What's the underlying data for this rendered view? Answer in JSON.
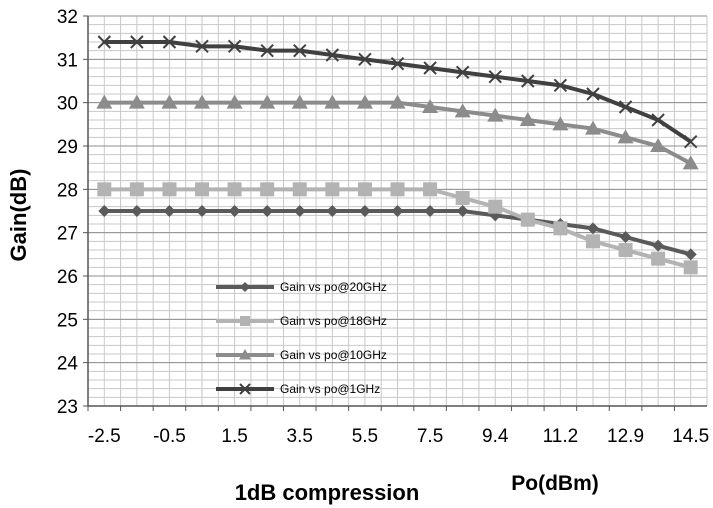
{
  "chart_data": {
    "type": "line",
    "title": "",
    "xlabel": "Po(dBm)",
    "ylabel": "Gain(dB)",
    "bottom_label": "1dB compression",
    "categories": [
      "-2.5",
      "-1.5",
      "-0.5",
      "0.5",
      "1.5",
      "2.5",
      "3.5",
      "4.5",
      "5.5",
      "6.5",
      "7.5",
      "8.5",
      "9.4",
      "10.3",
      "11.2",
      "12.0",
      "12.9",
      "13.7",
      "14.5"
    ],
    "shown_tick_labels": [
      "-2.5",
      "-0.5",
      "1.5",
      "3.5",
      "5.5",
      "7.5",
      "9.4",
      "11.2",
      "12.9",
      "14.5"
    ],
    "ylim": [
      23,
      32
    ],
    "y_ticks": [
      "23",
      "24",
      "25",
      "26",
      "27",
      "28",
      "29",
      "30",
      "31",
      "32"
    ],
    "grid": true,
    "legend_position": "center-left",
    "series": [
      {
        "name": "Gain vs po@20GHz",
        "marker": "diamond",
        "color": "#5a5a5a",
        "values": [
          27.5,
          27.5,
          27.5,
          27.5,
          27.5,
          27.5,
          27.5,
          27.5,
          27.5,
          27.5,
          27.5,
          27.5,
          27.4,
          27.3,
          27.2,
          27.1,
          26.9,
          26.7,
          26.5
        ]
      },
      {
        "name": "Gain vs po@18GHz",
        "marker": "square",
        "color": "#b3b3b3",
        "values": [
          28.0,
          28.0,
          28.0,
          28.0,
          28.0,
          28.0,
          28.0,
          28.0,
          28.0,
          28.0,
          28.0,
          27.8,
          27.6,
          27.3,
          27.1,
          26.8,
          26.6,
          26.4,
          26.2
        ]
      },
      {
        "name": "Gain vs po@10GHz",
        "marker": "triangle",
        "color": "#8c8c8c",
        "values": [
          30.0,
          30.0,
          30.0,
          30.0,
          30.0,
          30.0,
          30.0,
          30.0,
          30.0,
          30.0,
          29.9,
          29.8,
          29.7,
          29.6,
          29.5,
          29.4,
          29.2,
          29.0,
          28.6
        ]
      },
      {
        "name": "Gain vs po@1GHz",
        "marker": "x",
        "color": "#404040",
        "values": [
          31.4,
          31.4,
          31.4,
          31.3,
          31.3,
          31.2,
          31.2,
          31.1,
          31.0,
          30.9,
          30.8,
          30.7,
          30.6,
          30.5,
          30.4,
          30.2,
          29.9,
          29.6,
          29.1
        ]
      }
    ]
  }
}
